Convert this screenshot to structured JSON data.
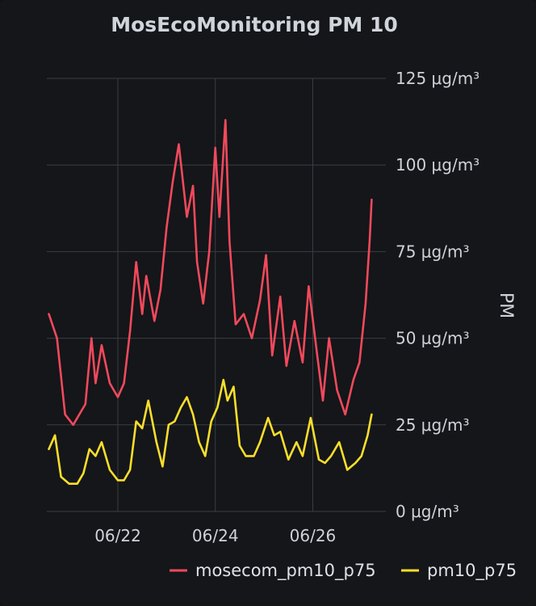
{
  "chart_data": {
    "type": "line",
    "title": "MosEcoMonitoring PM 10",
    "ylabel": "PM",
    "ylim": [
      0,
      125
    ],
    "yticks": [
      "0 μg/m³",
      "25 μg/m³",
      "50 μg/m³",
      "75 μg/m³",
      "100 μg/m³",
      "125 μg/m³"
    ],
    "xlim": [
      "06/20 13:00",
      "06/27 12:00"
    ],
    "xticks": [
      "06/22",
      "06/24",
      "06/26"
    ],
    "grid": true,
    "legend_position": "bottom-right",
    "colors": {
      "background": "#141619",
      "grid": "#3a3d44",
      "text": "#cfd2d8"
    },
    "series": [
      {
        "name": "mosecom_pm10_p75",
        "color": "#f2495c",
        "x": [
          "06/20 14:00",
          "06/20 18:00",
          "06/20 22:00",
          "06/21 02:00",
          "06/21 06:00",
          "06/21 08:00",
          "06/21 11:00",
          "06/21 13:00",
          "06/21 16:00",
          "06/21 20:00",
          "06/22 00:00",
          "06/22 03:00",
          "06/22 06:00",
          "06/22 09:00",
          "06/22 12:00",
          "06/22 14:00",
          "06/22 18:00",
          "06/22 21:00",
          "06/23 00:00",
          "06/23 03:00",
          "06/23 06:00",
          "06/23 10:00",
          "06/23 13:00",
          "06/23 15:00",
          "06/23 18:00",
          "06/23 21:00",
          "06/24 00:00",
          "06/24 02:00",
          "06/24 05:00",
          "06/24 07:00",
          "06/24 10:00",
          "06/24 14:00",
          "06/24 18:00",
          "06/24 22:00",
          "06/25 01:00",
          "06/25 04:00",
          "06/25 08:00",
          "06/25 11:00",
          "06/25 15:00",
          "06/25 19:00",
          "06/25 22:00",
          "06/26 02:00",
          "06/26 05:00",
          "06/26 08:00",
          "06/26 12:00",
          "06/26 16:00",
          "06/26 20:00",
          "06/26 23:00",
          "06/27 02:00",
          "06/27 04:00",
          "06/27 05:00"
        ],
        "values": [
          57,
          50,
          28,
          25,
          29,
          31,
          50,
          37,
          48,
          37,
          33,
          37,
          52,
          72,
          57,
          68,
          55,
          64,
          82,
          95,
          106,
          85,
          94,
          72,
          60,
          75,
          105,
          85,
          113,
          78,
          54,
          57,
          50,
          61,
          74,
          45,
          62,
          42,
          55,
          43,
          65,
          46,
          32,
          50,
          35,
          28,
          38,
          43,
          60,
          78,
          90
        ]
      },
      {
        "name": "pm10_p75",
        "color": "#fade2a",
        "x": [
          "06/20 14:00",
          "06/20 17:00",
          "06/20 20:00",
          "06/21 00:00",
          "06/21 04:00",
          "06/21 07:00",
          "06/21 10:00",
          "06/21 13:00",
          "06/21 16:00",
          "06/21 20:00",
          "06/22 00:00",
          "06/22 03:00",
          "06/22 06:00",
          "06/22 09:00",
          "06/22 12:00",
          "06/22 15:00",
          "06/22 19:00",
          "06/22 22:00",
          "06/23 01:00",
          "06/23 04:00",
          "06/23 07:00",
          "06/23 10:00",
          "06/23 13:00",
          "06/23 16:00",
          "06/23 19:00",
          "06/23 22:00",
          "06/24 01:00",
          "06/24 04:00",
          "06/24 06:00",
          "06/24 09:00",
          "06/24 12:00",
          "06/24 15:00",
          "06/24 19:00",
          "06/24 22:00",
          "06/25 02:00",
          "06/25 05:00",
          "06/25 08:00",
          "06/25 12:00",
          "06/25 16:00",
          "06/25 19:00",
          "06/25 23:00",
          "06/26 03:00",
          "06/26 06:00",
          "06/26 09:00",
          "06/26 13:00",
          "06/26 17:00",
          "06/26 21:00",
          "06/27 00:00",
          "06/27 03:00",
          "06/27 05:00"
        ],
        "values": [
          18,
          22,
          10,
          8,
          8,
          11,
          18,
          16,
          20,
          12,
          9,
          9,
          12,
          26,
          24,
          32,
          20,
          13,
          25,
          26,
          30,
          33,
          28,
          20,
          16,
          26,
          30,
          38,
          32,
          36,
          19,
          16,
          16,
          20,
          27,
          22,
          23,
          15,
          20,
          16,
          27,
          15,
          14,
          16,
          20,
          12,
          14,
          16,
          22,
          28
        ]
      }
    ]
  }
}
